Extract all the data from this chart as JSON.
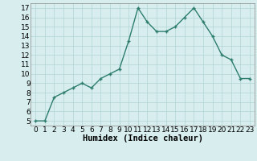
{
  "x": [
    0,
    1,
    2,
    3,
    4,
    5,
    6,
    7,
    8,
    9,
    10,
    11,
    12,
    13,
    14,
    15,
    16,
    17,
    18,
    19,
    20,
    21,
    22,
    23
  ],
  "y": [
    5,
    5,
    7.5,
    8,
    8.5,
    9,
    8.5,
    9.5,
    10,
    10.5,
    13.5,
    17,
    15.5,
    14.5,
    14.5,
    15,
    16,
    17,
    15.5,
    14,
    12,
    11.5,
    9.5,
    9.5
  ],
  "line_color": "#2d7d6e",
  "marker_color": "#2d7d6e",
  "bg_color": "#d8eeee",
  "grid_color": "#b0d4d4",
  "xlabel": "Humidex (Indice chaleur)",
  "ylim": [
    4.5,
    17.5
  ],
  "xlim": [
    -0.5,
    23.5
  ],
  "yticks": [
    5,
    6,
    7,
    8,
    9,
    10,
    11,
    12,
    13,
    14,
    15,
    16,
    17
  ],
  "xticks": [
    0,
    1,
    2,
    3,
    4,
    5,
    6,
    7,
    8,
    9,
    10,
    11,
    12,
    13,
    14,
    15,
    16,
    17,
    18,
    19,
    20,
    21,
    22,
    23
  ],
  "tick_fontsize": 6.5,
  "xlabel_fontsize": 7.5,
  "line_width": 1.0,
  "marker_size": 3.5
}
